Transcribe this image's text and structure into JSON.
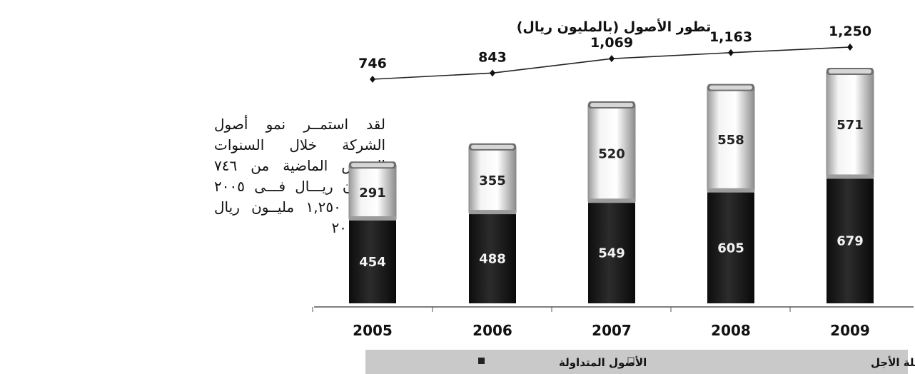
{
  "description_text": "لقد استمــر نمو أصول الشركة خلال السنوات الخمس الماضية من ٧٤٦ مليــون ريـــال فـــى ٢٠٠٥ الـــى ١,٢٥٠ مليــون ريال فى ٢٠٠٩",
  "chart_data": {
    "type": "bar",
    "stacked": true,
    "title": "تطور الأصول (بالمليون ريال)",
    "categories": [
      "2005",
      "2006",
      "2007",
      "2008",
      "2009"
    ],
    "series": [
      {
        "name": "الأصول الثابتة وطويلة الأجل",
        "values": [
          291,
          355,
          520,
          558,
          571
        ],
        "color": "#e8e8e8"
      },
      {
        "name": "الأصول المتداولة",
        "values": [
          454,
          488,
          549,
          605,
          679
        ],
        "color": "#1c1c1c"
      }
    ],
    "totals": {
      "type": "line",
      "values": [
        746,
        843,
        1069,
        1163,
        1250
      ],
      "labels": [
        "746",
        "843",
        "1,069",
        "1,163",
        "1,250"
      ]
    },
    "legend": {
      "position": "bottom",
      "background": "#c8c8c8"
    }
  }
}
